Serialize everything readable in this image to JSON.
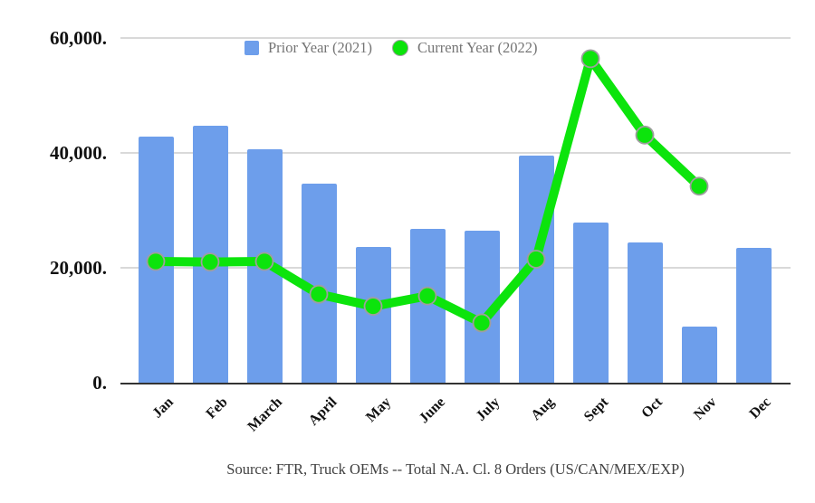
{
  "chart_data": {
    "type": "bar",
    "subtype": "bar-and-line-combo",
    "title": "",
    "categories": [
      "Jan",
      "Feb",
      "March",
      "April",
      "May",
      "June",
      "July",
      "Aug",
      "Sept",
      "Oct",
      "Nov",
      "Dec"
    ],
    "series": [
      {
        "name": "Prior Year (2021)",
        "type": "bar",
        "color": "#6d9eeb",
        "values": [
          42800,
          44700,
          40700,
          34700,
          23600,
          26700,
          26500,
          39500,
          27900,
          24400,
          9700,
          23400
        ]
      },
      {
        "name": "Current Year (2022)",
        "type": "line",
        "color": "#0ce40c",
        "marker_outline_color": "#9e9e9e",
        "values": [
          21100,
          21000,
          21100,
          15400,
          13300,
          15100,
          10400,
          21500,
          56400,
          43100,
          34200,
          null
        ]
      }
    ],
    "ylim": [
      0,
      60000
    ],
    "yticks": [
      0,
      20000,
      40000,
      60000
    ],
    "ytick_labels": [
      "0.",
      "20,000.",
      "40,000.",
      "60,000."
    ],
    "xlabel": "",
    "ylabel": "",
    "grid": true,
    "gridline_color": "#d9d9d9",
    "axis_color": "#333333",
    "legend_position": "top",
    "source_note": "Source: FTR, Truck OEMs -- Total N.A. Cl. 8 Orders (US/CAN/MEX/EXP)"
  }
}
